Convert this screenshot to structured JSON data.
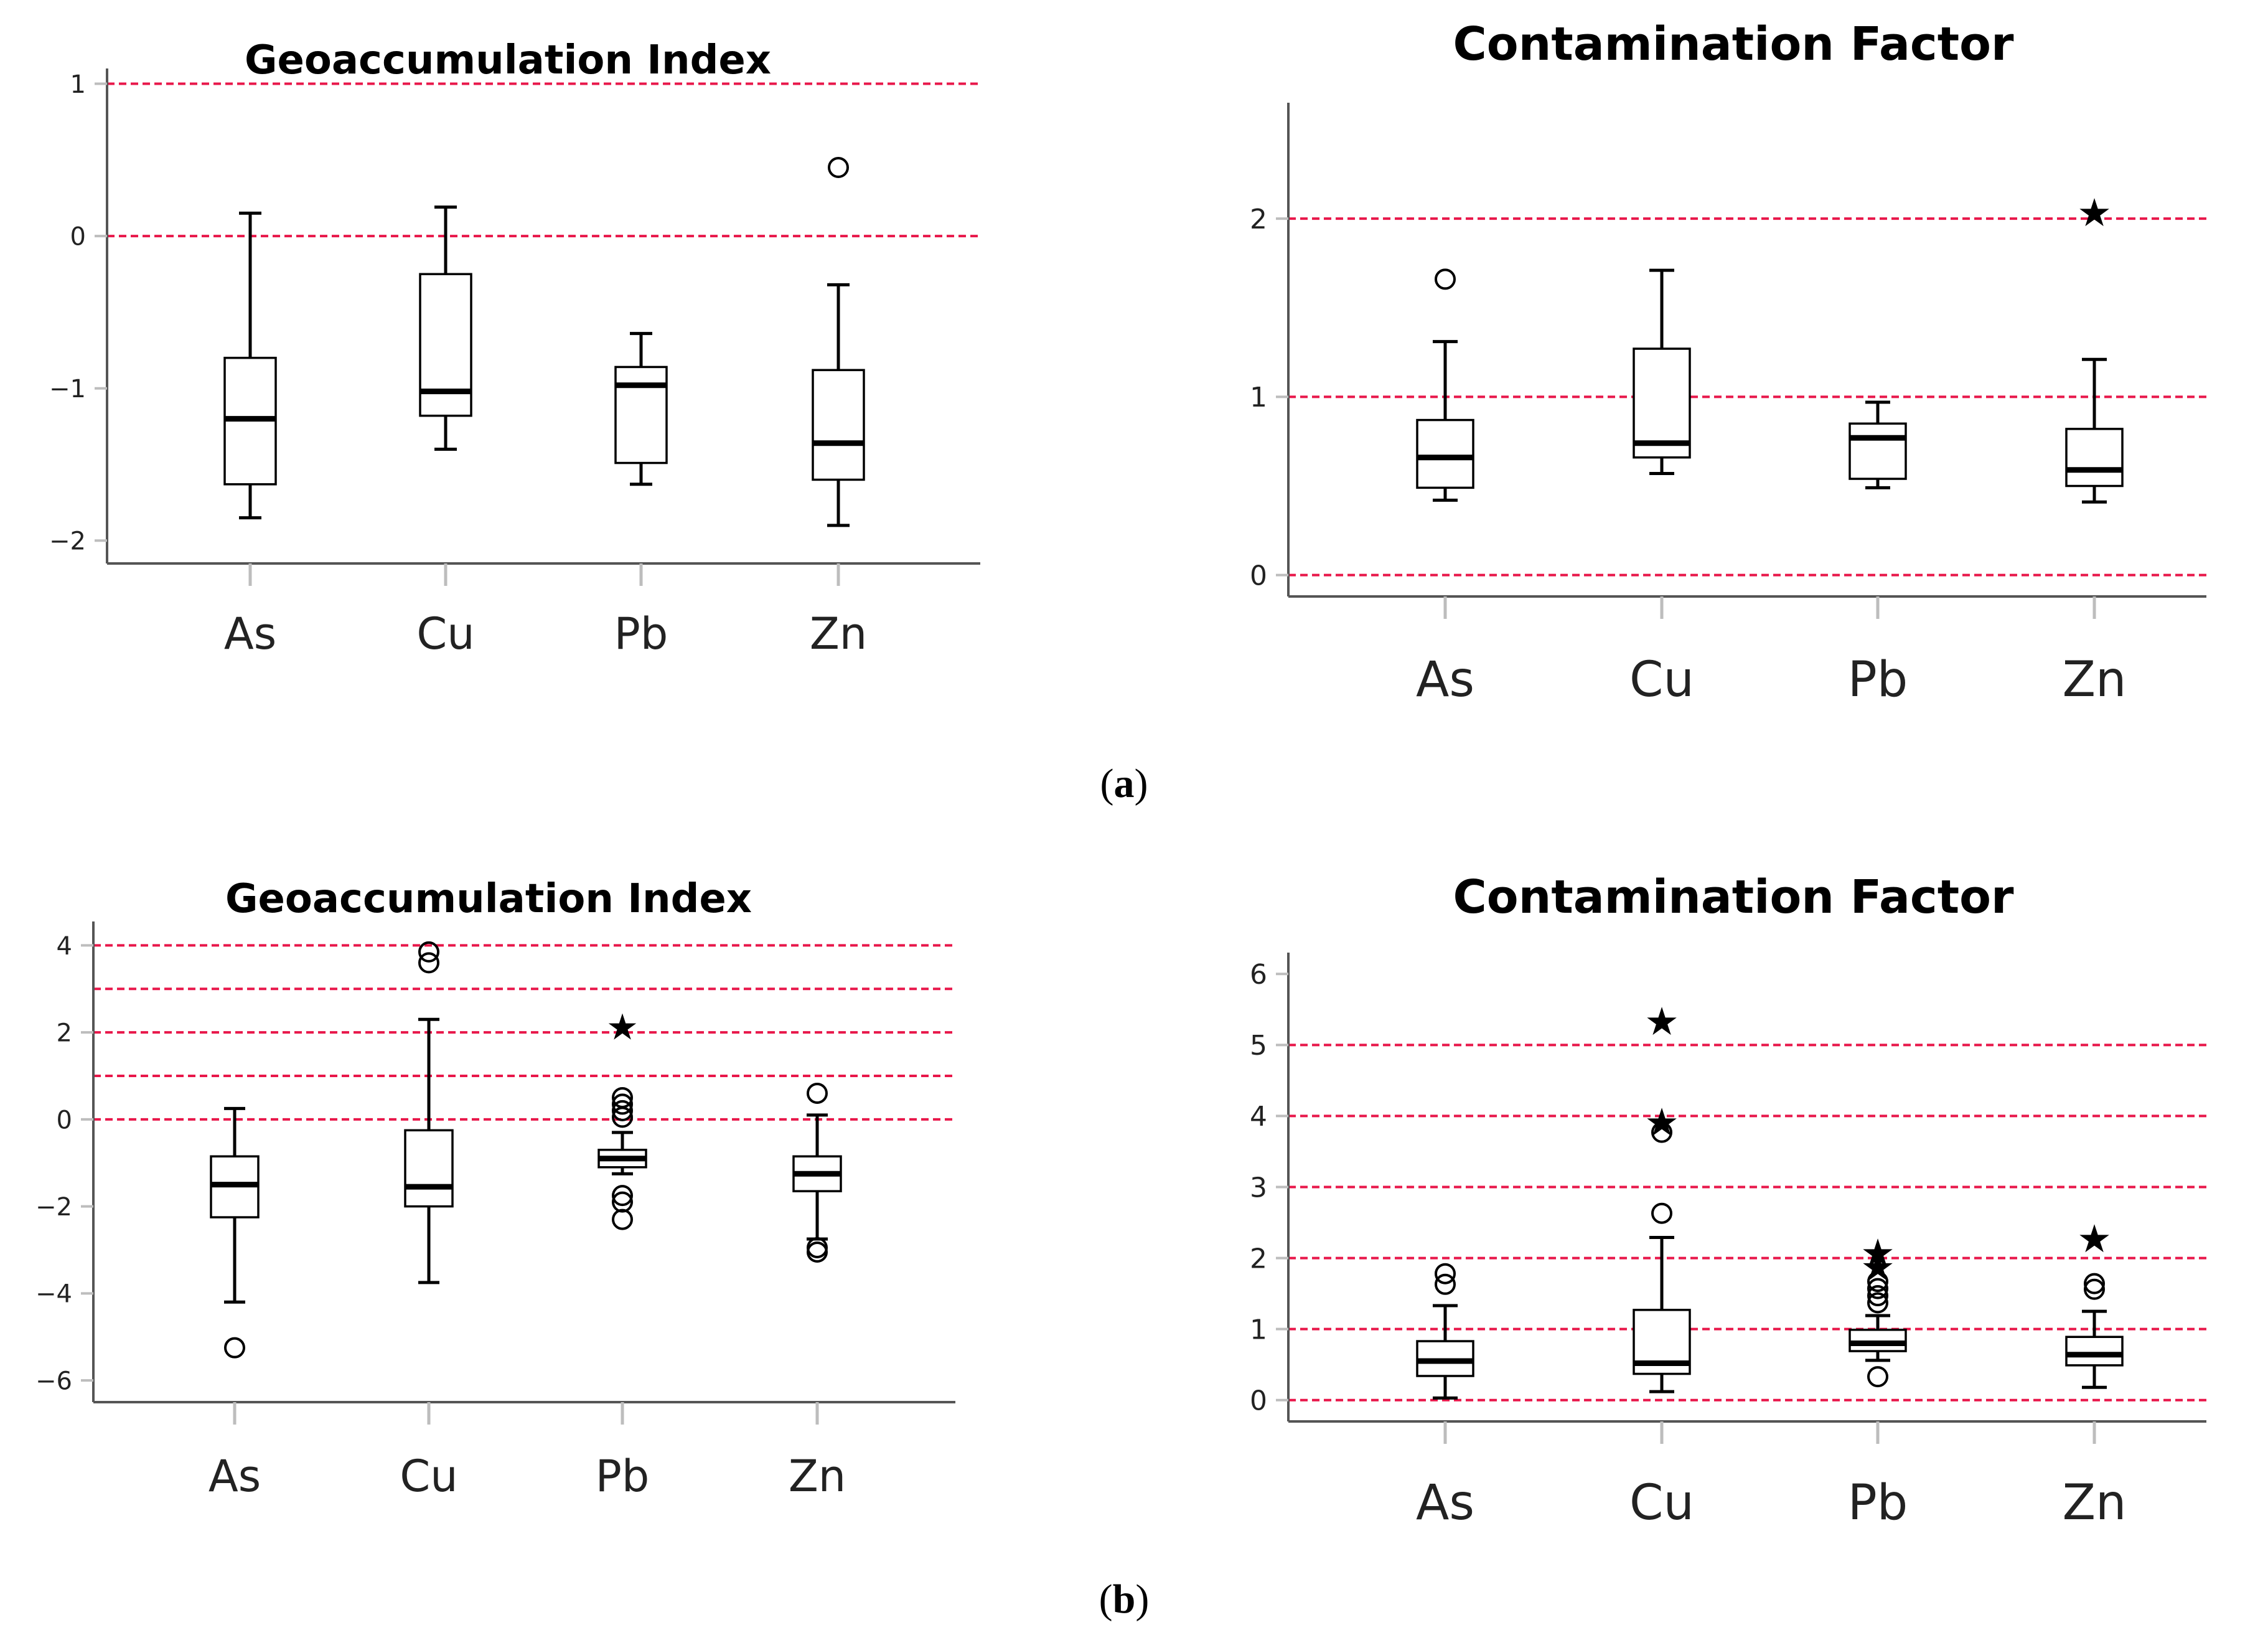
{
  "figure": {
    "panel_labels": [
      {
        "open": "(",
        "letter": "a",
        "close": ")"
      },
      {
        "open": "(",
        "letter": "b",
        "close": ")"
      }
    ],
    "colors": {
      "threshold": "#e8174a",
      "box": "#000000",
      "axis": "#555555",
      "tick": "#bdbdbd"
    }
  },
  "chart_data": [
    {
      "id": "a-igeo",
      "type": "boxplot",
      "title": "Geoaccumulation Index",
      "categories": [
        "As",
        "Cu",
        "Pb",
        "Zn"
      ],
      "ylim": [
        -2.15,
        1.1
      ],
      "yticks": [
        -2,
        -1,
        0,
        1
      ],
      "ytick_labels": [
        "−2",
        "−1",
        "0",
        "1"
      ],
      "thresholds": [
        0,
        1
      ],
      "boxes": [
        {
          "cat": "As",
          "whisker_low": -1.85,
          "q1": -1.63,
          "median": -1.2,
          "q3": -0.8,
          "whisker_high": 0.15,
          "outliers": [],
          "extremes": []
        },
        {
          "cat": "Cu",
          "whisker_low": -1.4,
          "q1": -1.18,
          "median": -1.02,
          "q3": -0.25,
          "whisker_high": 0.19,
          "outliers": [],
          "extremes": []
        },
        {
          "cat": "Pb",
          "whisker_low": -1.63,
          "q1": -1.49,
          "median": -0.98,
          "q3": -0.86,
          "whisker_high": -0.64,
          "outliers": [],
          "extremes": []
        },
        {
          "cat": "Zn",
          "whisker_low": -1.9,
          "q1": -1.6,
          "median": -1.36,
          "q3": -0.88,
          "whisker_high": -0.32,
          "outliers": [
            0.45
          ],
          "extremes": []
        }
      ]
    },
    {
      "id": "a-cf",
      "type": "boxplot",
      "title": "Contamination Factor",
      "categories": [
        "As",
        "Cu",
        "Pb",
        "Zn"
      ],
      "ylim": [
        -0.12,
        2.65
      ],
      "yticks": [
        0,
        1,
        2
      ],
      "ytick_labels": [
        "0",
        "1",
        "2"
      ],
      "thresholds": [
        0,
        1,
        2
      ],
      "boxes": [
        {
          "cat": "As",
          "whisker_low": 0.42,
          "q1": 0.49,
          "median": 0.66,
          "q3": 0.87,
          "whisker_high": 1.31,
          "outliers": [
            1.66
          ],
          "extremes": []
        },
        {
          "cat": "Cu",
          "whisker_low": 0.57,
          "q1": 0.66,
          "median": 0.74,
          "q3": 1.27,
          "whisker_high": 1.71,
          "outliers": [],
          "extremes": []
        },
        {
          "cat": "Pb",
          "whisker_low": 0.49,
          "q1": 0.54,
          "median": 0.77,
          "q3": 0.85,
          "whisker_high": 0.97,
          "outliers": [],
          "extremes": []
        },
        {
          "cat": "Zn",
          "whisker_low": 0.41,
          "q1": 0.5,
          "median": 0.59,
          "q3": 0.82,
          "whisker_high": 1.21,
          "outliers": [],
          "extremes": [
            2.04
          ]
        }
      ]
    },
    {
      "id": "b-igeo",
      "type": "boxplot",
      "title": "Geoaccumulation Index",
      "categories": [
        "As",
        "Cu",
        "Pb",
        "Zn"
      ],
      "ylim": [
        -6.5,
        4.55
      ],
      "yticks": [
        -6,
        -4,
        -2,
        0,
        2,
        4
      ],
      "ytick_labels": [
        "−6",
        "−4",
        "−2",
        "0",
        "2",
        "4"
      ],
      "thresholds": [
        0,
        1,
        2,
        3,
        4
      ],
      "boxes": [
        {
          "cat": "As",
          "whisker_low": -4.2,
          "q1": -2.25,
          "median": -1.5,
          "q3": -0.85,
          "whisker_high": 0.25,
          "outliers": [
            -5.25
          ],
          "extremes": []
        },
        {
          "cat": "Cu",
          "whisker_low": -3.75,
          "q1": -2.0,
          "median": -1.55,
          "q3": -0.25,
          "whisker_high": 2.3,
          "outliers": [
            3.6,
            3.85
          ],
          "extremes": []
        },
        {
          "cat": "Pb",
          "whisker_low": -1.25,
          "q1": -1.1,
          "median": -0.9,
          "q3": -0.7,
          "whisker_high": -0.3,
          "outliers": [
            -2.3,
            -1.9,
            -1.75,
            0.05,
            0.2,
            0.35,
            0.5
          ],
          "extremes": [
            2.15
          ]
        },
        {
          "cat": "Zn",
          "whisker_low": -2.75,
          "q1": -1.65,
          "median": -1.25,
          "q3": -0.85,
          "whisker_high": 0.1,
          "outliers": [
            -3.05,
            -2.95,
            0.6
          ],
          "extremes": []
        }
      ]
    },
    {
      "id": "b-cf",
      "type": "boxplot",
      "title": "Contamination Factor",
      "categories": [
        "As",
        "Cu",
        "Pb",
        "Zn"
      ],
      "ylim": [
        -0.3,
        6.3
      ],
      "yticks": [
        0,
        1,
        2,
        3,
        4,
        5,
        6
      ],
      "ytick_labels": [
        "0",
        "1",
        "2",
        "3",
        "4",
        "5",
        "6"
      ],
      "thresholds": [
        0,
        1,
        2,
        3,
        4,
        5
      ],
      "boxes": [
        {
          "cat": "As",
          "whisker_low": 0.03,
          "q1": 0.34,
          "median": 0.55,
          "q3": 0.83,
          "whisker_high": 1.33,
          "outliers": [
            1.63,
            1.78
          ],
          "extremes": []
        },
        {
          "cat": "Cu",
          "whisker_low": 0.12,
          "q1": 0.37,
          "median": 0.52,
          "q3": 1.27,
          "whisker_high": 2.29,
          "outliers": [
            2.63,
            3.77
          ],
          "extremes": [
            3.93,
            5.35
          ]
        },
        {
          "cat": "Pb",
          "whisker_low": 0.56,
          "q1": 0.69,
          "median": 0.8,
          "q3": 0.99,
          "whisker_high": 1.19,
          "outliers": [
            0.33,
            1.37,
            1.47,
            1.57,
            1.67
          ],
          "extremes": [
            1.89,
            2.09
          ]
        },
        {
          "cat": "Zn",
          "whisker_low": 0.18,
          "q1": 0.49,
          "median": 0.64,
          "q3": 0.89,
          "whisker_high": 1.25,
          "outliers": [
            1.56,
            1.64
          ],
          "extremes": [
            2.29
          ]
        }
      ]
    }
  ]
}
